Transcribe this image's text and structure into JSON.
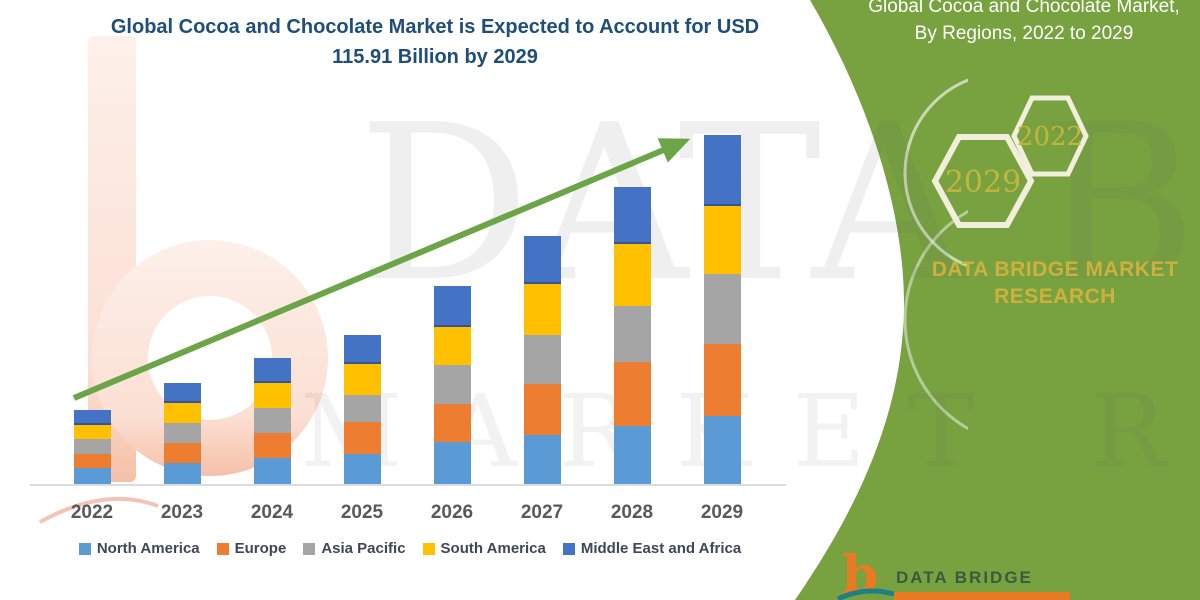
{
  "title": {
    "line1": "Global Cocoa and Chocolate Market is Expected to Account for USD",
    "line2": "115.91 Billion by 2029",
    "color": "#1F4E79"
  },
  "chart_data": {
    "type": "bar",
    "stacked": true,
    "title": "Global Cocoa and Chocolate Market is Expected to Account for USD 115.91 Billion by 2029",
    "unit": "USD Billion",
    "categories": [
      "2022",
      "2023",
      "2024",
      "2025",
      "2026",
      "2027",
      "2028",
      "2029"
    ],
    "series": [
      {
        "name": "North America",
        "color": "#5B9BD5",
        "values": [
          5.3,
          6.9,
          8.6,
          9.9,
          14.0,
          16.4,
          19.2,
          22.5
        ]
      },
      {
        "name": "Europe",
        "color": "#ED7D31",
        "values": [
          4.7,
          6.6,
          8.2,
          10.8,
          12.8,
          17.0,
          21.4,
          24.1
        ]
      },
      {
        "name": "Asia Pacific",
        "color": "#A5A5A5",
        "values": [
          4.9,
          6.6,
          8.3,
          9.0,
          12.9,
          16.4,
          18.8,
          23.3
        ]
      },
      {
        "name": "South America",
        "color": "#FFC000",
        "values": [
          4.6,
          6.7,
          8.3,
          10.2,
          12.8,
          17.0,
          20.6,
          22.5
        ]
      },
      {
        "name": "Middle East and Africa",
        "color": "#4472C4",
        "values": [
          4.9,
          6.8,
          8.4,
          9.8,
          13.6,
          16.1,
          19.0,
          23.6
        ]
      }
    ],
    "totals": [
      24.4,
      33.6,
      41.8,
      49.7,
      66.1,
      82.9,
      99.0,
      115.91
    ],
    "ylim": [
      0,
      120
    ],
    "y_axis_visible": false,
    "grid": false,
    "legend_position": "bottom",
    "trend_arrow": true,
    "trend_arrow_color": "#6BA547"
  },
  "side_panel": {
    "heading": "Global Cocoa and Chocolate Market, By Regions, 2022 to 2029",
    "hex_back_year": "2029",
    "hex_front_year": "2022",
    "brand": "DATA BRIDGE MARKET RESEARCH",
    "background": "#78A240",
    "gold": "#CDB13C"
  },
  "watermark": {
    "line1": "DATA BRIDGE",
    "line2": "MARKET RESEARCH"
  },
  "logo": {
    "symbol": "b",
    "name": "DATA BRIDGE"
  }
}
